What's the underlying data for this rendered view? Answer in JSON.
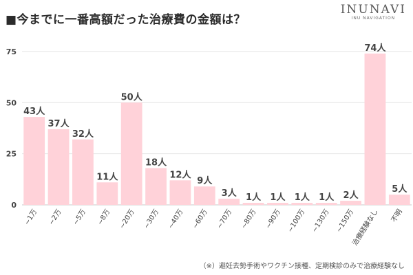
{
  "title": "■今までに一番高額だった治療費の金額は？",
  "brand": {
    "name": "INUNAVI",
    "tagline": "INU NAVIGATION"
  },
  "footnote": "（※）避妊去勢手術やワクチン接種、定期検診のみで治療経験なし",
  "colors": {
    "bar": "#ffd2d9",
    "grid": "#e4e4e4",
    "axis": "#c9c9c9",
    "tick_text": "#444444",
    "value_text": "#444444"
  },
  "chart_data": {
    "type": "bar",
    "title": "■今までに一番高額だった治療費の金額は？",
    "xlabel": "",
    "ylabel": "",
    "ylim": [
      0,
      80
    ],
    "yticks": [
      0,
      25,
      50,
      75
    ],
    "grid": true,
    "categories": [
      "~1万",
      "~2万",
      "~5万",
      "~8万",
      "~20万",
      "~30万",
      "~40万",
      "~60万",
      "~70万",
      "~80万",
      "~90万",
      "~100万",
      "~130万",
      "~150万",
      "治療経験なし",
      "不明"
    ],
    "values": [
      43,
      37,
      32,
      11,
      50,
      18,
      12,
      9,
      3,
      1,
      1,
      1,
      1,
      2,
      74,
      5
    ],
    "value_unit": "人",
    "value_labels": [
      "43人",
      "37人",
      "32人",
      "11人",
      "50人",
      "18人",
      "12人",
      "9人",
      "3人",
      "1人",
      "1人",
      "1人",
      "1人",
      "2人",
      "74人",
      "5人"
    ]
  }
}
